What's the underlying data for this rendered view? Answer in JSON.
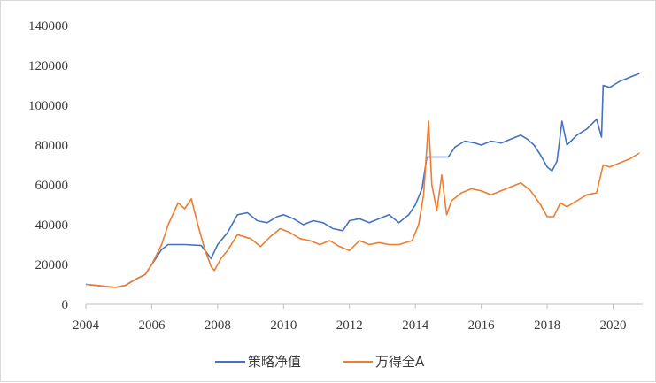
{
  "chart_data": {
    "type": "line",
    "title": "",
    "xlabel": "",
    "ylabel": "",
    "xlim": [
      2004,
      2020.9
    ],
    "ylim": [
      0,
      140000
    ],
    "x_ticks": [
      "2004",
      "2006",
      "2008",
      "2010",
      "2012",
      "2014",
      "2016",
      "2018",
      "2020"
    ],
    "y_ticks": [
      "0",
      "20000",
      "40000",
      "60000",
      "80000",
      "100000",
      "120000",
      "140000"
    ],
    "grid": false,
    "legend_position": "bottom",
    "series": [
      {
        "name": "策略净值",
        "color": "#4472c4",
        "points": [
          [
            2004.0,
            10000
          ],
          [
            2004.3,
            9500
          ],
          [
            2004.6,
            9000
          ],
          [
            2004.9,
            8500
          ],
          [
            2005.2,
            9500
          ],
          [
            2005.5,
            12500
          ],
          [
            2005.8,
            15000
          ],
          [
            2006.0,
            20000
          ],
          [
            2006.3,
            27500
          ],
          [
            2006.5,
            30000
          ],
          [
            2007.0,
            30000
          ],
          [
            2007.5,
            29500
          ],
          [
            2007.8,
            23000
          ],
          [
            2008.0,
            30000
          ],
          [
            2008.3,
            36000
          ],
          [
            2008.6,
            45000
          ],
          [
            2008.9,
            46000
          ],
          [
            2009.2,
            42000
          ],
          [
            2009.5,
            41000
          ],
          [
            2009.8,
            44000
          ],
          [
            2010.0,
            45000
          ],
          [
            2010.3,
            43000
          ],
          [
            2010.6,
            40000
          ],
          [
            2010.9,
            42000
          ],
          [
            2011.2,
            41000
          ],
          [
            2011.5,
            38000
          ],
          [
            2011.8,
            37000
          ],
          [
            2012.0,
            42000
          ],
          [
            2012.3,
            43000
          ],
          [
            2012.6,
            41000
          ],
          [
            2012.9,
            43000
          ],
          [
            2013.2,
            45000
          ],
          [
            2013.5,
            41000
          ],
          [
            2013.8,
            45000
          ],
          [
            2014.0,
            50000
          ],
          [
            2014.2,
            58000
          ],
          [
            2014.35,
            74000
          ],
          [
            2015.0,
            74000
          ],
          [
            2015.2,
            79000
          ],
          [
            2015.5,
            82000
          ],
          [
            2015.8,
            81000
          ],
          [
            2016.0,
            80000
          ],
          [
            2016.3,
            82000
          ],
          [
            2016.6,
            81000
          ],
          [
            2016.9,
            83000
          ],
          [
            2017.2,
            85000
          ],
          [
            2017.4,
            83000
          ],
          [
            2017.6,
            80000
          ],
          [
            2017.8,
            75000
          ],
          [
            2018.0,
            69000
          ],
          [
            2018.15,
            67000
          ],
          [
            2018.3,
            72000
          ],
          [
            2018.45,
            92000
          ],
          [
            2018.6,
            80000
          ],
          [
            2018.9,
            85000
          ],
          [
            2019.2,
            88000
          ],
          [
            2019.5,
            93000
          ],
          [
            2019.65,
            84000
          ],
          [
            2019.7,
            110000
          ],
          [
            2019.9,
            109000
          ],
          [
            2020.2,
            112000
          ],
          [
            2020.5,
            114000
          ],
          [
            2020.8,
            116000
          ]
        ]
      },
      {
        "name": "万得全A",
        "color": "#ed7d31",
        "points": [
          [
            2004.0,
            10000
          ],
          [
            2004.3,
            9500
          ],
          [
            2004.6,
            9000
          ],
          [
            2004.9,
            8500
          ],
          [
            2005.2,
            9500
          ],
          [
            2005.5,
            12500
          ],
          [
            2005.8,
            15000
          ],
          [
            2006.0,
            20000
          ],
          [
            2006.3,
            30000
          ],
          [
            2006.5,
            40000
          ],
          [
            2006.8,
            51000
          ],
          [
            2007.0,
            48000
          ],
          [
            2007.2,
            53000
          ],
          [
            2007.4,
            40000
          ],
          [
            2007.6,
            28000
          ],
          [
            2007.8,
            19000
          ],
          [
            2007.9,
            17000
          ],
          [
            2008.1,
            23000
          ],
          [
            2008.3,
            27000
          ],
          [
            2008.6,
            35000
          ],
          [
            2009.0,
            33000
          ],
          [
            2009.3,
            29000
          ],
          [
            2009.6,
            34000
          ],
          [
            2009.9,
            38000
          ],
          [
            2010.2,
            36000
          ],
          [
            2010.5,
            33000
          ],
          [
            2010.8,
            32000
          ],
          [
            2011.1,
            30000
          ],
          [
            2011.4,
            32000
          ],
          [
            2011.7,
            29000
          ],
          [
            2012.0,
            27000
          ],
          [
            2012.3,
            32000
          ],
          [
            2012.6,
            30000
          ],
          [
            2012.9,
            31000
          ],
          [
            2013.2,
            30000
          ],
          [
            2013.5,
            30000
          ],
          [
            2013.9,
            32000
          ],
          [
            2014.1,
            40000
          ],
          [
            2014.25,
            55000
          ],
          [
            2014.4,
            92000
          ],
          [
            2014.5,
            60000
          ],
          [
            2014.65,
            47000
          ],
          [
            2014.8,
            65000
          ],
          [
            2014.95,
            45000
          ],
          [
            2015.1,
            52000
          ],
          [
            2015.4,
            56000
          ],
          [
            2015.7,
            58000
          ],
          [
            2016.0,
            57000
          ],
          [
            2016.3,
            55000
          ],
          [
            2016.6,
            57000
          ],
          [
            2016.9,
            59000
          ],
          [
            2017.2,
            61000
          ],
          [
            2017.5,
            57000
          ],
          [
            2017.8,
            50000
          ],
          [
            2018.0,
            44000
          ],
          [
            2018.2,
            44000
          ],
          [
            2018.4,
            51000
          ],
          [
            2018.6,
            49000
          ],
          [
            2018.9,
            52000
          ],
          [
            2019.2,
            55000
          ],
          [
            2019.5,
            56000
          ],
          [
            2019.7,
            70000
          ],
          [
            2019.9,
            69000
          ],
          [
            2020.2,
            71000
          ],
          [
            2020.5,
            73000
          ],
          [
            2020.8,
            76000
          ]
        ]
      }
    ]
  }
}
